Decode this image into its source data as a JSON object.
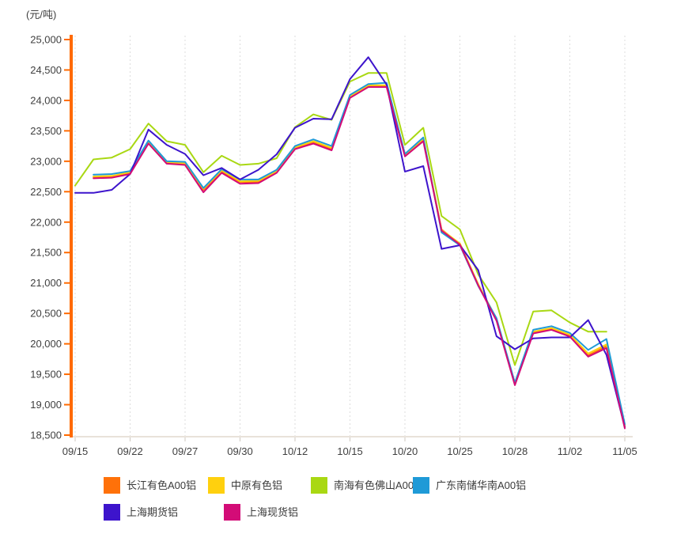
{
  "unit_label": "(元/吨)",
  "axis_colors": {
    "y_axis": "#ff6a00",
    "x_axis": "#e9e2da",
    "x_tick": "#cfc8c0",
    "grid": "#dcdcdc",
    "tick_text": "#3f3f3f"
  },
  "chart_data": {
    "type": "line",
    "title": "",
    "ylabel": "(元/吨)",
    "ylim": [
      18500,
      25000
    ],
    "grid": "vertical-dotted",
    "legend_position": "bottom",
    "x_count": 31,
    "x_tick_indices": [
      0,
      3,
      6,
      9,
      12,
      15,
      18,
      21,
      24,
      27,
      30
    ],
    "x_tick_labels": [
      "09/15",
      "09/22",
      "09/27",
      "09/30",
      "10/12",
      "10/15",
      "10/20",
      "10/25",
      "10/28",
      "11/02",
      "11/05"
    ],
    "y_ticks": [
      25000,
      24500,
      24000,
      23500,
      23000,
      22500,
      22000,
      21500,
      21000,
      20500,
      20000,
      19500,
      19000,
      18500
    ],
    "y_tick_labels": [
      "25,000",
      "24,500",
      "24,000",
      "23,500",
      "23,000",
      "22,500",
      "22,000",
      "21,500",
      "21,000",
      "20,500",
      "20,000",
      "19,500",
      "19,000",
      "18,500"
    ],
    "series": [
      {
        "name": "长江有色A00铝",
        "color": "#ff7109",
        "values": [
          null,
          22740,
          22750,
          22810,
          23310,
          22980,
          22960,
          22530,
          22830,
          22660,
          22660,
          22830,
          23220,
          23310,
          23200,
          24060,
          24240,
          24240,
          23100,
          23360,
          21880,
          21640,
          20970,
          20400,
          19340,
          20190,
          20250,
          20140,
          19810,
          19960,
          18640
        ]
      },
      {
        "name": "中原有色铝",
        "color": "#ffd00e",
        "values": [
          null,
          22750,
          22760,
          22820,
          23320,
          22990,
          22970,
          22550,
          22850,
          22670,
          22680,
          22840,
          23230,
          23330,
          23220,
          24070,
          24250,
          24250,
          23110,
          23370,
          21870,
          21650,
          20980,
          20410,
          19350,
          20200,
          20260,
          20150,
          19840,
          19990,
          18660
        ]
      },
      {
        "name": "南海有色佛山A00铝",
        "color": "#a9d813",
        "values": [
          22600,
          23030,
          23060,
          23200,
          23620,
          23330,
          23270,
          22820,
          23090,
          22940,
          22960,
          23050,
          23560,
          23770,
          23680,
          24310,
          24450,
          24450,
          23270,
          23550,
          22100,
          21880,
          21140,
          20680,
          19650,
          20530,
          20550,
          20350,
          20200,
          20200,
          null
        ]
      },
      {
        "name": "广东南储华南A00铝",
        "color": "#1f9ad7",
        "values": [
          null,
          22780,
          22790,
          22840,
          23340,
          23000,
          22990,
          22560,
          22870,
          22700,
          22700,
          22860,
          23250,
          23360,
          23250,
          24090,
          24270,
          24290,
          23120,
          23390,
          21830,
          21620,
          20950,
          20420,
          19360,
          20230,
          20290,
          20180,
          19900,
          20080,
          18680
        ]
      },
      {
        "name": "上海期货铝",
        "color": "#3d14cc",
        "values": [
          22480,
          22480,
          22530,
          22790,
          23520,
          23270,
          23120,
          22770,
          22890,
          22700,
          22860,
          23115,
          23550,
          23700,
          23690,
          24350,
          24710,
          24260,
          22830,
          22920,
          21560,
          21620,
          21210,
          20125,
          19910,
          20090,
          20105,
          20105,
          20390,
          19820,
          18630
        ]
      },
      {
        "name": "上海现货铝",
        "color": "#d30c77",
        "values": [
          null,
          22720,
          22730,
          22790,
          23290,
          22960,
          22940,
          22490,
          22810,
          22630,
          22640,
          22810,
          23200,
          23290,
          23180,
          24040,
          24220,
          24220,
          23080,
          23330,
          21860,
          21630,
          20960,
          20380,
          19320,
          20170,
          20230,
          20120,
          19790,
          19930,
          18610
        ]
      }
    ]
  }
}
